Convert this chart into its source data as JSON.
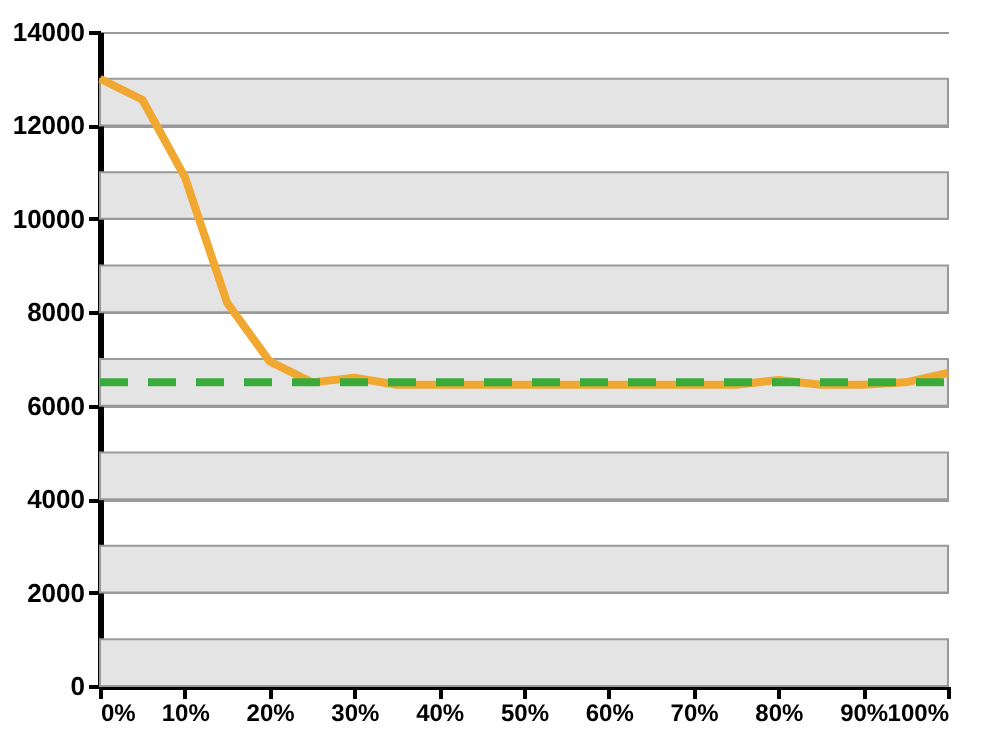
{
  "chart_data": {
    "type": "line",
    "x": [
      0,
      5,
      10,
      15,
      20,
      25,
      30,
      35,
      40,
      45,
      50,
      55,
      60,
      65,
      70,
      75,
      80,
      85,
      90,
      95,
      100
    ],
    "series": [
      {
        "color": "#f0a830",
        "values": [
          13000,
          12550,
          10900,
          8200,
          6950,
          6500,
          6600,
          6450,
          6450,
          6450,
          6450,
          6450,
          6450,
          6450,
          6450,
          6450,
          6550,
          6450,
          6450,
          6500,
          6700
        ]
      },
      {
        "color": "#3aaa3a",
        "line_style": "dashed",
        "x": [
          0,
          100
        ],
        "values": [
          6500,
          6500
        ]
      }
    ],
    "xlim": [
      0,
      100
    ],
    "xticks": [
      {
        "value": 0,
        "label": "0%"
      },
      {
        "value": 10,
        "label": "10%"
      },
      {
        "value": 20,
        "label": "20%"
      },
      {
        "value": 30,
        "label": "30%"
      },
      {
        "value": 40,
        "label": "40%"
      },
      {
        "value": 50,
        "label": "50%"
      },
      {
        "value": 60,
        "label": "60%"
      },
      {
        "value": 70,
        "label": "70%"
      },
      {
        "value": 80,
        "label": "80%"
      },
      {
        "value": 90,
        "label": "90%"
      },
      {
        "value": 100,
        "label": "100%"
      }
    ],
    "ylim": [
      0,
      14000
    ],
    "yticks": [
      0,
      2000,
      4000,
      6000,
      8000,
      10000,
      12000,
      14000
    ],
    "grid": "y",
    "bands": [
      {
        "axis": "y",
        "from": 0,
        "to": 1000,
        "color": "#e4e4e4"
      },
      {
        "axis": "y",
        "from": 2000,
        "to": 3000,
        "color": "#e4e4e4"
      },
      {
        "axis": "y",
        "from": 4000,
        "to": 5000,
        "color": "#e4e4e4"
      },
      {
        "axis": "y",
        "from": 6000,
        "to": 7000,
        "color": "#e4e4e4"
      },
      {
        "axis": "y",
        "from": 8000,
        "to": 9000,
        "color": "#e4e4e4"
      },
      {
        "axis": "y",
        "from": 10000,
        "to": 11000,
        "color": "#e4e4e4"
      },
      {
        "axis": "y",
        "from": 12000,
        "to": 13000,
        "color": "#e4e4e4"
      }
    ],
    "marker": "none"
  }
}
